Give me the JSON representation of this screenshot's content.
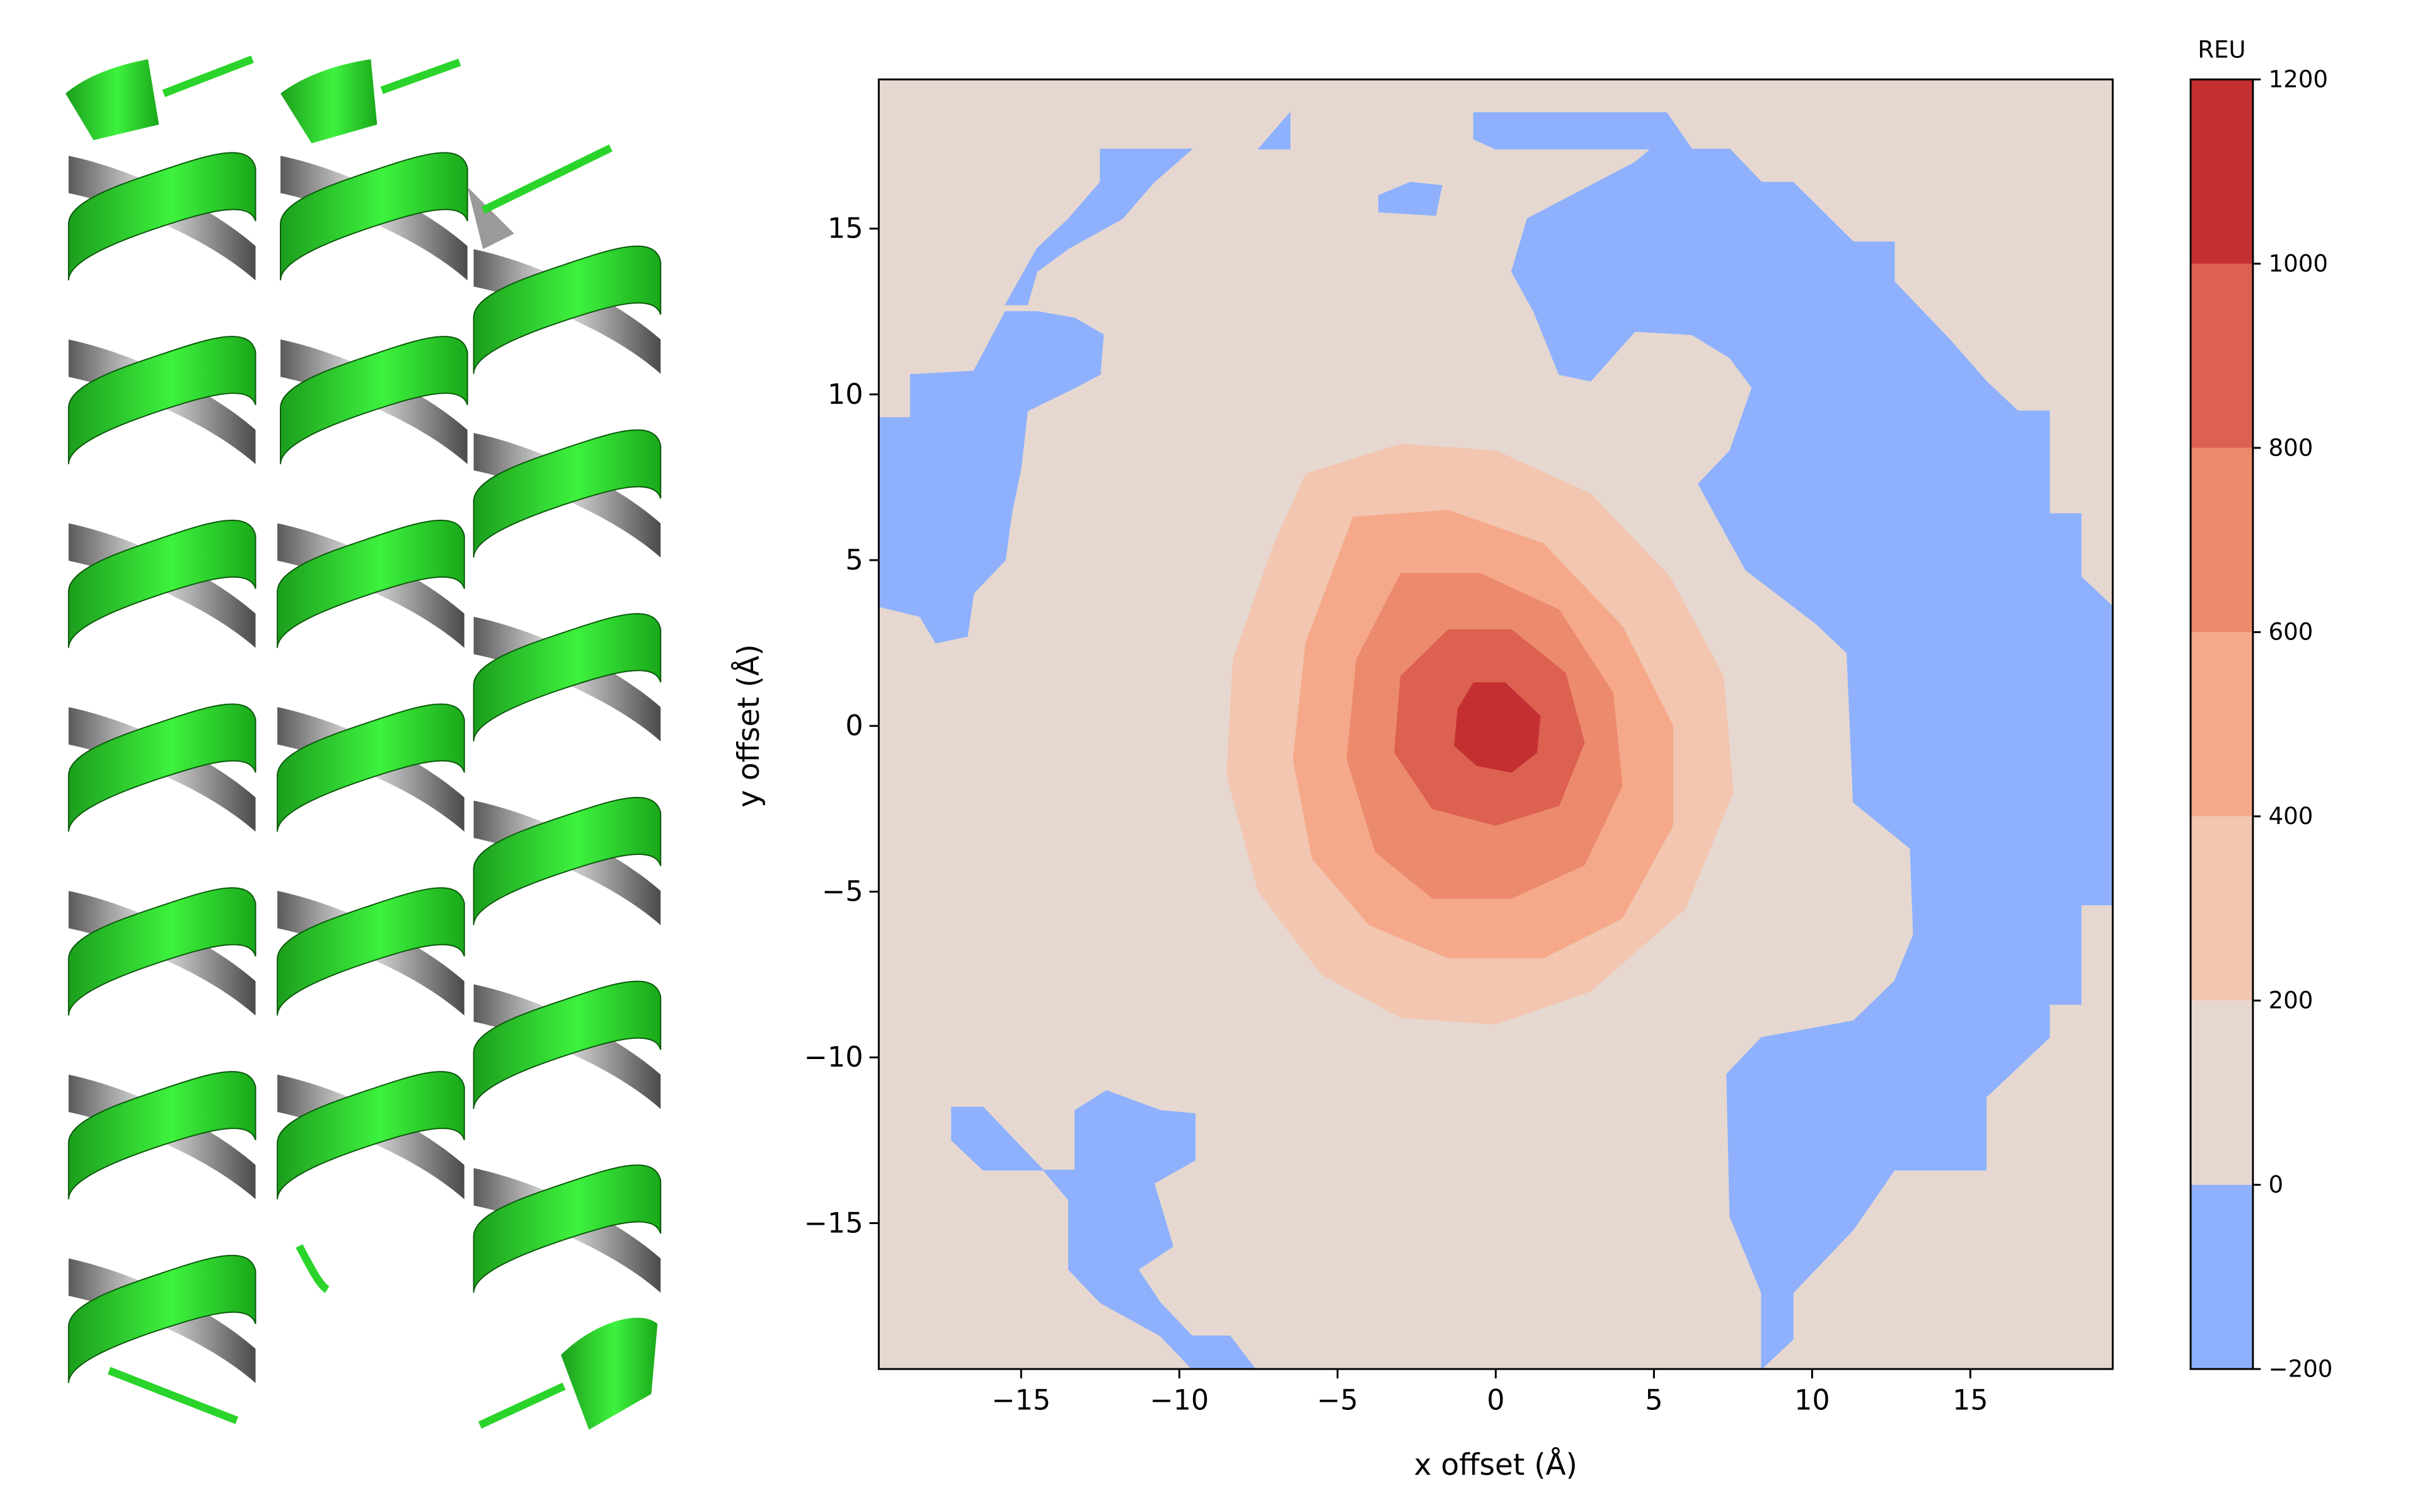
{
  "chart_data": {
    "type": "contour",
    "xlabel": "x offset (Å)",
    "ylabel": "y offset (Å)",
    "colorbar_label": "REU",
    "xlim": [
      -19.5,
      19.5
    ],
    "ylim": [
      -19.4,
      19.5
    ],
    "xticks": [
      {
        "value": -15,
        "label": "−15"
      },
      {
        "value": -10,
        "label": "−10"
      },
      {
        "value": -5,
        "label": "−5"
      },
      0,
      5,
      10,
      15
    ],
    "yticks": [
      {
        "value": -15,
        "label": "−15"
      },
      {
        "value": -10,
        "label": "−10"
      },
      {
        "value": -5,
        "label": "−5"
      },
      0,
      5,
      10,
      15
    ],
    "levels": [
      {
        "value": -200,
        "label": "−200"
      },
      0,
      200,
      400,
      600,
      800,
      1000,
      1200
    ],
    "colors": [
      "#8fb1fd",
      "#e6d8d0",
      "#f2c6b0",
      "#f5a98a",
      "#ec8a6d",
      "#dd6150",
      "#c43032"
    ],
    "regions": [
      {
        "level": 0,
        "x": [
          -19.5,
          19.5,
          19.5,
          -19.5
        ],
        "y": [
          -19.4,
          -19.4,
          19.5,
          19.5
        ]
      },
      {
        "level": -200,
        "x": [
          -0.7,
          5.4,
          6.2,
          7.4,
          8.4,
          9.4,
          11.3,
          12.6,
          12.6,
          14.4,
          15.5,
          16.5,
          17.5,
          17.5,
          18.5,
          18.5,
          19.5,
          19.5,
          18.5,
          18.5,
          17.5,
          17.5,
          15.5,
          15.5,
          12.6,
          11.3,
          9.4,
          9.4,
          8.4,
          8.4,
          7.4,
          7.3,
          8.4,
          11.3,
          12.6,
          13.2,
          13.1,
          11.3,
          11.1,
          10.1,
          7.9,
          6.4,
          7.4,
          8.1,
          7.4,
          6.2,
          4.4,
          3.0,
          2.0,
          1.2,
          0.5,
          1.0,
          3.0,
          4.4,
          4.9,
          0,
          -0.7
        ],
        "y": [
          18.5,
          18.5,
          17.4,
          17.4,
          16.4,
          16.4,
          14.6,
          14.6,
          13.4,
          11.6,
          10.4,
          9.5,
          9.5,
          6.4,
          6.4,
          4.5,
          3.6,
          -5.4,
          -5.4,
          -8.4,
          -8.4,
          -9.4,
          -11.2,
          -13.4,
          -13.4,
          -15.2,
          -17.1,
          -18.5,
          -19.4,
          -17.1,
          -14.8,
          -10.5,
          -9.4,
          -8.9,
          -7.7,
          -6.3,
          -3.7,
          -2.3,
          2.2,
          3.1,
          4.7,
          7.3,
          8.3,
          10.2,
          11.1,
          11.8,
          11.9,
          10.4,
          10.6,
          12.5,
          13.7,
          15.3,
          16.3,
          17.0,
          17.4,
          17.4,
          17.7
        ]
      },
      {
        "level": -200,
        "x": [
          -19.5,
          -18.5,
          -18.5,
          -16.5,
          -15.5,
          -14.5,
          -13.3,
          -12.4,
          -12.5,
          -13.3,
          -14.8,
          -15.0,
          -15.3,
          -15.5,
          -16.5,
          -16.7,
          -17.7,
          -18.2,
          -19.5
        ],
        "y": [
          9.3,
          9.3,
          10.6,
          10.7,
          12.5,
          12.5,
          12.3,
          11.8,
          10.6,
          10.2,
          9.5,
          7.8,
          6.4,
          5.0,
          4.0,
          2.7,
          2.5,
          3.3,
          3.6
        ]
      },
      {
        "level": -200,
        "x": [
          -15.5,
          -14.5,
          -13.5,
          -12.5,
          -12.5,
          -9.6,
          -10.8,
          -11.8,
          -13.5,
          -14.5,
          -14.8
        ],
        "y": [
          12.7,
          14.4,
          15.3,
          16.4,
          17.4,
          17.4,
          16.4,
          15.3,
          14.4,
          13.7,
          12.7
        ]
      },
      {
        "level": -200,
        "x": [
          -7.5,
          -6.5,
          -6.5
        ],
        "y": [
          17.4,
          18.5,
          17.4
        ]
      },
      {
        "level": -200,
        "x": [
          -3.7,
          -2.7,
          -1.7,
          -1.9,
          -3.7
        ],
        "y": [
          16.0,
          16.4,
          16.3,
          15.4,
          15.5
        ]
      },
      {
        "level": -200,
        "x": [
          -17.2,
          -16.2,
          -14.3,
          -13.3,
          -13.3,
          -12.3,
          -10.6,
          -9.5,
          -9.5,
          -10.8,
          -10.2,
          -11.3,
          -10.6,
          -9.6,
          -8.4,
          -7.6,
          -9.6,
          -10.6,
          -12.5,
          -13.5,
          -13.5,
          -14.3,
          -16.2,
          -17.2
        ],
        "y": [
          -11.5,
          -11.5,
          -13.4,
          -13.4,
          -11.6,
          -11.0,
          -11.6,
          -11.7,
          -13.1,
          -13.8,
          -15.7,
          -16.4,
          -17.4,
          -18.4,
          -18.4,
          -19.4,
          -19.4,
          -18.4,
          -17.4,
          -16.4,
          -14.3,
          -13.4,
          -13.4,
          -12.5
        ]
      },
      {
        "level": 200,
        "x": [
          -6,
          -3,
          0,
          3,
          5.5,
          7.2,
          7.5,
          6,
          3,
          0,
          -3,
          -5.5,
          -7.5,
          -8.5,
          -8.3,
          -7
        ],
        "y": [
          7.6,
          8.5,
          8.3,
          7,
          4.5,
          1.5,
          -2,
          -5.5,
          -8,
          -9,
          -8.8,
          -7.5,
          -5,
          -1.5,
          2,
          5.5
        ]
      },
      {
        "level": 400,
        "x": [
          -4.5,
          -1.5,
          1.5,
          4,
          5.6,
          5.6,
          4,
          1.5,
          -1.5,
          -4,
          -5.8,
          -6.4,
          -6
        ],
        "y": [
          6.3,
          6.5,
          5.5,
          3,
          0,
          -3,
          -5.8,
          -7,
          -7,
          -6,
          -4,
          -1,
          2.5
        ]
      },
      {
        "level": 600,
        "x": [
          -3,
          -0.5,
          2,
          3.7,
          4,
          2.8,
          0.5,
          -2,
          -3.8,
          -4.7,
          -4.4
        ],
        "y": [
          4.6,
          4.6,
          3.5,
          1,
          -1.8,
          -4.2,
          -5.2,
          -5.2,
          -3.8,
          -1,
          2
        ]
      },
      {
        "level": 800,
        "x": [
          -1.5,
          0.5,
          2.2,
          2.8,
          2,
          0,
          -2,
          -3.2,
          -3
        ],
        "y": [
          2.9,
          2.9,
          1.6,
          -0.5,
          -2.4,
          -3,
          -2.5,
          -0.8,
          1.5
        ]
      },
      {
        "level": 1000,
        "x": [
          -0.7,
          0.3,
          1.4,
          1.3,
          0.5,
          -0.6,
          -1.3,
          -1.2
        ],
        "y": [
          1.3,
          1.3,
          0.3,
          -0.8,
          -1.4,
          -1.2,
          -0.6,
          0.5
        ]
      }
    ]
  }
}
